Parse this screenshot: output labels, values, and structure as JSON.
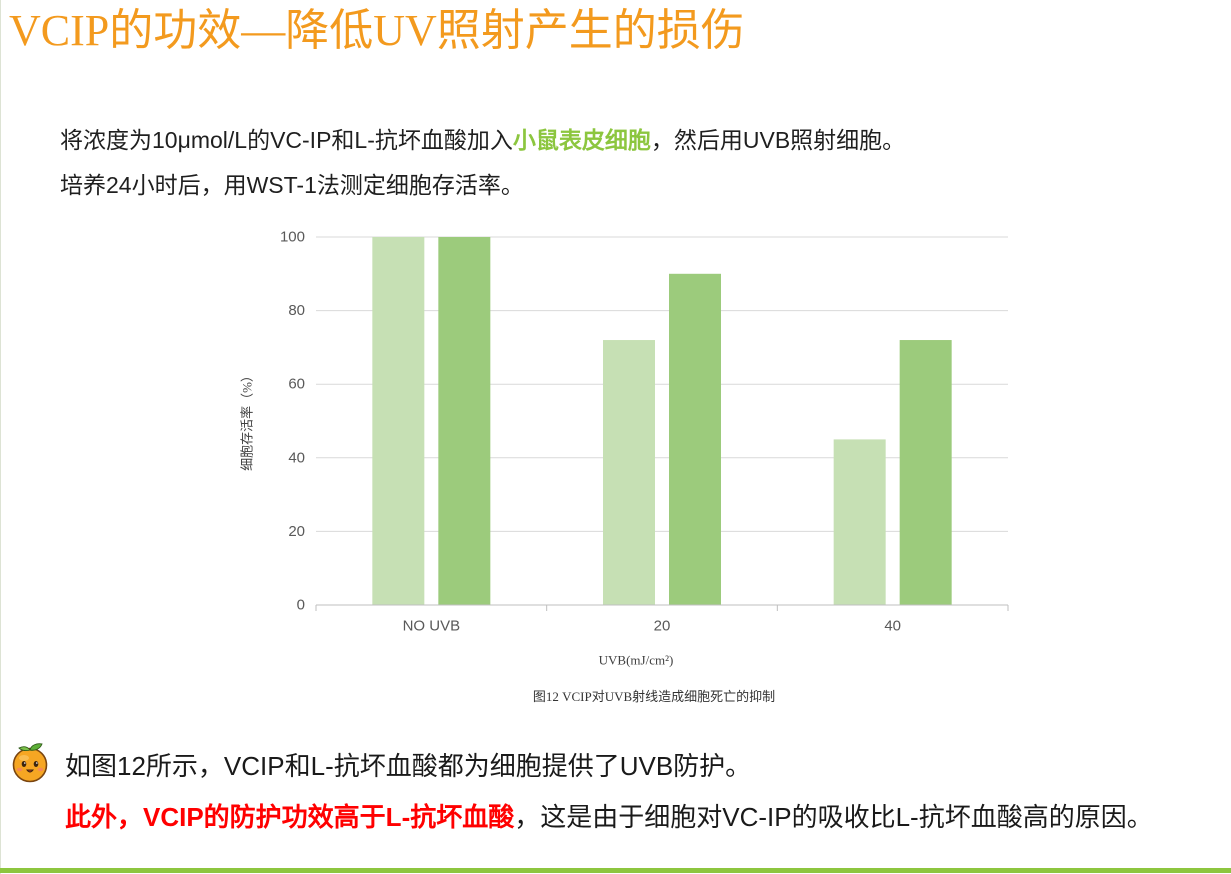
{
  "slide": {
    "title": "VCIP的功效—降低UV照射产生的损伤",
    "intro": {
      "line1_before": "将浓度为10μmol/L的VC-IP和L-抗坏血酸加入",
      "line1_highlight": "小鼠表皮细胞",
      "line1_after": "，然后用UVB照射细胞。",
      "line2": "培养24小时后，用WST-1法测定细胞存活率。"
    },
    "conclusion": {
      "icon": "orange-face-icon",
      "line1": "如图12所示，VCIP和L-抗坏血酸都为细胞提供了UVB防护。",
      "line2_highlight": "此外，VCIP的防护功效高于L-抗坏血酸",
      "line2_after": "，这是由于细胞对VC-IP的吸收比L-抗坏血酸高的原因。"
    },
    "colors": {
      "title": "#F39A1E",
      "highlight_green": "#8CC63F",
      "highlight_red": "#FF0000",
      "bottom_rule": "#8DC63F"
    }
  },
  "chart_data": {
    "type": "bar",
    "categories": [
      "NO UVB",
      "20",
      "40"
    ],
    "series": [
      {
        "values": [
          100,
          72,
          45
        ],
        "color": "#C6E0B4"
      },
      {
        "values": [
          100,
          90,
          72
        ],
        "color": "#9CCB7C"
      }
    ],
    "xlabel": "UVB(mJ/cm²)",
    "ylabel": "细胞存活率（%）",
    "caption": "图12 VCIP对UVB射线造成细胞死亡的抑制",
    "ylim": [
      0,
      100
    ],
    "yticks": [
      0,
      20,
      40,
      60,
      80,
      100
    ],
    "grid": true,
    "legend": "none"
  }
}
